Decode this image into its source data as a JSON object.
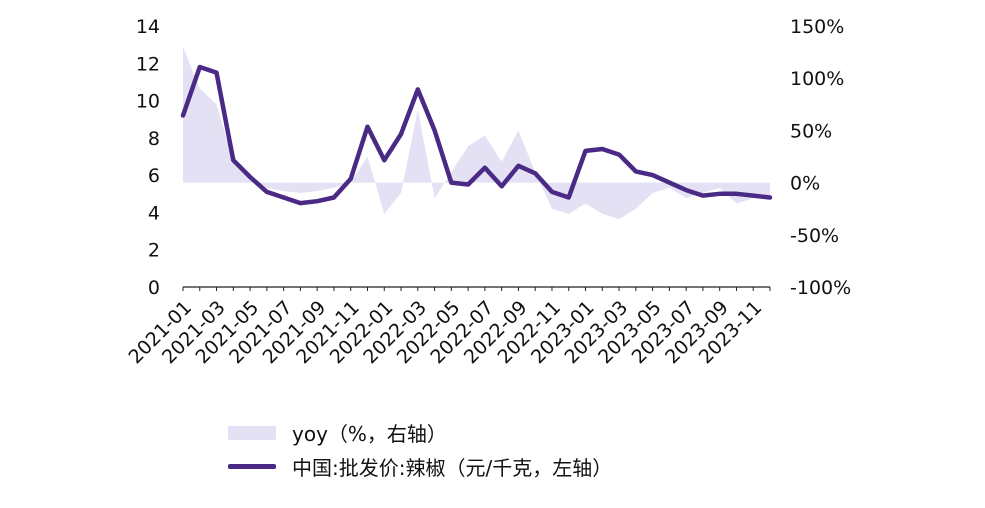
{
  "chart_data": {
    "type": "line",
    "x": [
      "2021-01",
      "2021-02",
      "2021-03",
      "2021-04",
      "2021-05",
      "2021-06",
      "2021-07",
      "2021-08",
      "2021-09",
      "2021-10",
      "2021-11",
      "2021-12",
      "2022-01",
      "2022-02",
      "2022-03",
      "2022-04",
      "2022-05",
      "2022-06",
      "2022-07",
      "2022-08",
      "2022-09",
      "2022-10",
      "2022-11",
      "2022-12",
      "2023-01",
      "2023-02",
      "2023-03",
      "2023-04",
      "2023-05",
      "2023-06",
      "2023-07",
      "2023-08",
      "2023-09",
      "2023-10",
      "2023-11",
      "2023-12"
    ],
    "x_tick_labels": [
      "2021-01",
      "2021-03",
      "2021-05",
      "2021-07",
      "2021-09",
      "2021-11",
      "2022-01",
      "2022-03",
      "2022-05",
      "2022-07",
      "2022-09",
      "2022-11",
      "2023-01",
      "2023-03",
      "2023-05",
      "2023-07",
      "2023-09",
      "2023-11"
    ],
    "series": [
      {
        "name": "中国:批发价:辣椒（元/千克，左轴）",
        "axis": "left",
        "style": "line",
        "color": "#4b2a86",
        "values": [
          9.2,
          11.8,
          11.5,
          6.8,
          5.9,
          5.1,
          4.8,
          4.5,
          4.6,
          4.8,
          5.8,
          8.6,
          6.8,
          8.2,
          10.6,
          8.4,
          5.6,
          5.5,
          6.4,
          5.4,
          6.5,
          6.1,
          5.1,
          4.8,
          7.3,
          7.4,
          7.1,
          6.2,
          6.0,
          5.6,
          5.2,
          4.9,
          5.0,
          5.0,
          4.9,
          4.8
        ]
      },
      {
        "name": "yoy（%，右轴）",
        "axis": "right",
        "style": "area",
        "color": "#e3e1f3",
        "values": [
          130,
          90,
          75,
          20,
          5,
          -5,
          -8,
          -10,
          -8,
          -5,
          0,
          25,
          -30,
          -10,
          70,
          -15,
          10,
          35,
          45,
          20,
          50,
          10,
          -25,
          -30,
          -20,
          -30,
          -35,
          -25,
          -10,
          -5,
          -15,
          -10,
          -5,
          -20,
          -15,
          -15
        ]
      }
    ],
    "y_left": {
      "ticks": [
        "0",
        "2",
        "4",
        "6",
        "8",
        "10",
        "12",
        "14"
      ],
      "ylim": [
        0,
        14
      ]
    },
    "y_right": {
      "ticks": [
        "-100%",
        "-50%",
        "0%",
        "50%",
        "100%",
        "150%"
      ],
      "ylim": [
        -100,
        150
      ]
    },
    "legend": {
      "placement": "bottom",
      "items": [
        "yoy（%，右轴）",
        "中国:批发价:辣椒（元/千克，左轴）"
      ]
    },
    "grid": false
  }
}
